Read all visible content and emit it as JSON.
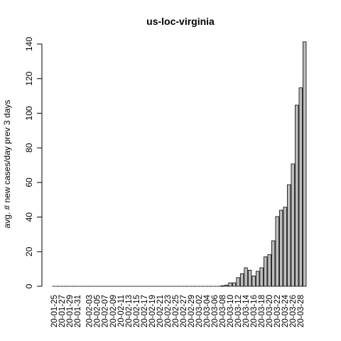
{
  "chart_data": {
    "type": "bar",
    "title": "us-loc-virginia",
    "ylabel": "avg. # new cases/day prev  3  days",
    "xlabel": "",
    "ylim": [
      0,
      140
    ],
    "yticks": [
      0,
      20,
      40,
      60,
      80,
      100,
      120,
      140
    ],
    "bar_fill": "#bebebe",
    "bar_stroke": "#000000",
    "categories": [
      "20-01-25",
      "20-01-26",
      "20-01-27",
      "20-01-28",
      "20-01-29",
      "20-01-30",
      "20-01-31",
      "20-02-01",
      "20-02-02",
      "20-02-03",
      "20-02-04",
      "20-02-05",
      "20-02-06",
      "20-02-07",
      "20-02-08",
      "20-02-09",
      "20-02-10",
      "20-02-11",
      "20-02-12",
      "20-02-13",
      "20-02-14",
      "20-02-15",
      "20-02-16",
      "20-02-17",
      "20-02-18",
      "20-02-19",
      "20-02-20",
      "20-02-21",
      "20-02-22",
      "20-02-23",
      "20-02-24",
      "20-02-25",
      "20-02-26",
      "20-02-27",
      "20-02-28",
      "20-02-29",
      "20-03-01",
      "20-03-02",
      "20-03-03",
      "20-03-04",
      "20-03-05",
      "20-03-06",
      "20-03-07",
      "20-03-08",
      "20-03-09",
      "20-03-10",
      "20-03-11",
      "20-03-12",
      "20-03-13",
      "20-03-14",
      "20-03-15",
      "20-03-16",
      "20-03-17",
      "20-03-18",
      "20-03-19",
      "20-03-20",
      "20-03-21",
      "20-03-22",
      "20-03-23",
      "20-03-24",
      "20-03-25",
      "20-03-26",
      "20-03-27",
      "20-03-28",
      "20-03-29"
    ],
    "values": [
      0,
      0,
      0,
      0,
      0,
      0,
      0,
      0,
      0,
      0,
      0,
      0,
      0,
      0,
      0,
      0,
      0,
      0,
      0,
      0,
      0,
      0,
      0,
      0,
      0,
      0,
      0,
      0,
      0,
      0,
      0,
      0,
      0,
      0,
      0,
      0,
      0,
      0,
      0,
      0,
      0,
      0,
      0,
      0.3,
      0.7,
      2,
      2,
      5,
      7.3,
      10.7,
      9.3,
      6,
      8.7,
      10.7,
      17,
      18.3,
      26.3,
      40.3,
      44,
      45.7,
      58.7,
      70.7,
      104.7,
      114.7,
      141.3
    ],
    "labeled_categories": [
      "20-01-25",
      "20-01-27",
      "20-01-29",
      "20-01-31",
      "20-02-03",
      "20-02-05",
      "20-02-07",
      "20-02-09",
      "20-02-11",
      "20-02-13",
      "20-02-15",
      "20-02-17",
      "20-02-19",
      "20-02-21",
      "20-02-23",
      "20-02-25",
      "20-02-27",
      "20-02-29",
      "20-03-02",
      "20-03-04",
      "20-03-06",
      "20-03-08",
      "20-03-10",
      "20-03-12",
      "20-03-14",
      "20-03-16",
      "20-03-18",
      "20-03-20",
      "20-03-22",
      "20-03-24",
      "20-03-26",
      "20-03-28"
    ]
  }
}
